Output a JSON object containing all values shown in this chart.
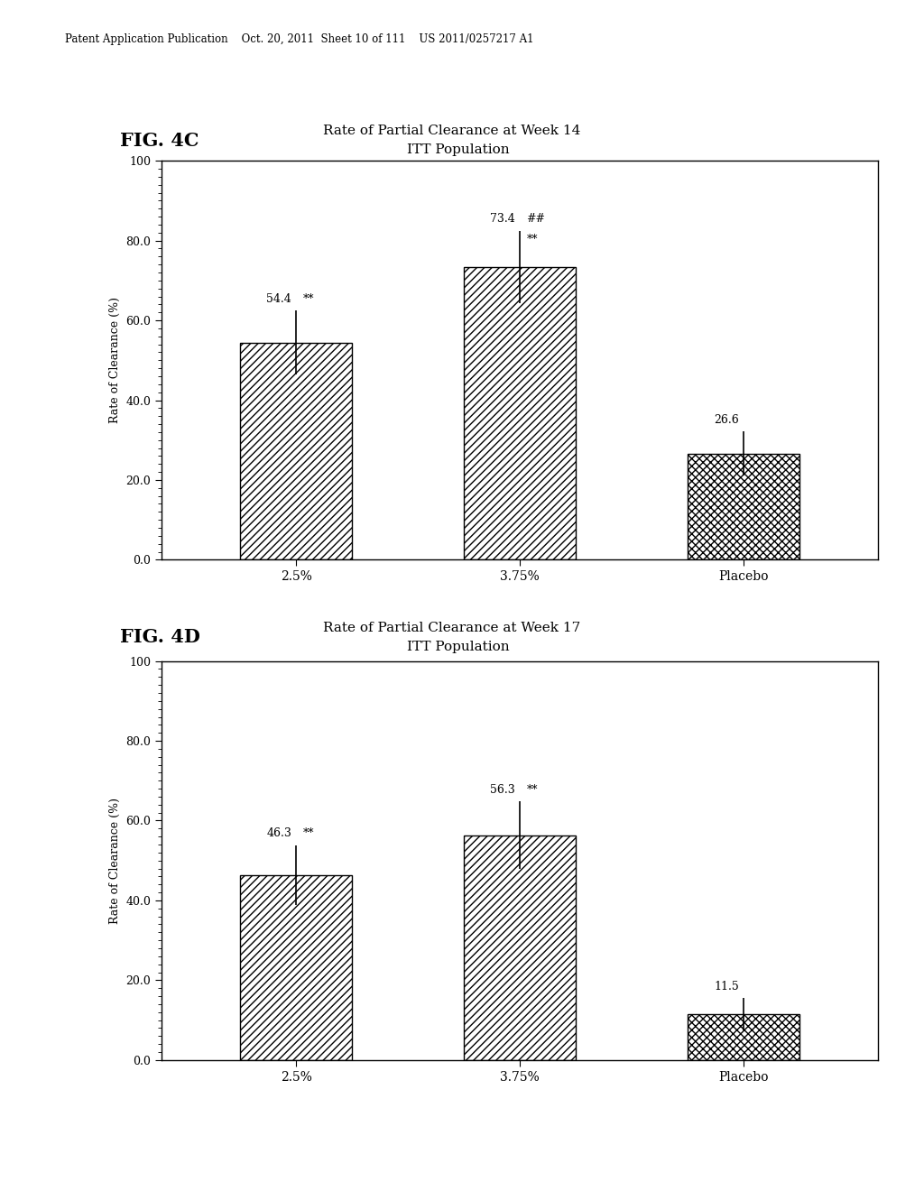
{
  "fig4c": {
    "title_line1": "Rate of Partial Clearance at Week 14",
    "title_line2": "ITT Population",
    "fig_label": "FIG. 4C",
    "categories": [
      "2.5%",
      "3.75%",
      "Placebo"
    ],
    "values": [
      54.4,
      73.4,
      26.6
    ],
    "errors": [
      8.0,
      9.0,
      5.5
    ],
    "bar_labels": [
      "54.4",
      "73.4",
      "26.6"
    ],
    "ann1": [
      "**",
      "##",
      ""
    ],
    "ann2": [
      "",
      "**",
      ""
    ],
    "ylim": [
      0,
      100
    ],
    "yticks": [
      0.0,
      20.0,
      40.0,
      60.0,
      80.0,
      100
    ],
    "ylabel": "Rate of Clearance (%)"
  },
  "fig4d": {
    "title_line1": "Rate of Partial Clearance at Week 17",
    "title_line2": "ITT Population",
    "fig_label": "FIG. 4D",
    "categories": [
      "2.5%",
      "3.75%",
      "Placebo"
    ],
    "values": [
      46.3,
      56.3,
      11.5
    ],
    "errors": [
      7.5,
      8.5,
      4.0
    ],
    "bar_labels": [
      "46.3",
      "56.3",
      "11.5"
    ],
    "ann1": [
      "**",
      "**",
      ""
    ],
    "ann2": [
      "",
      "",
      ""
    ],
    "ylim": [
      0,
      100
    ],
    "yticks": [
      0.0,
      20.0,
      40.0,
      60.0,
      80.0,
      100
    ],
    "ylabel": "Rate of Clearance (%)"
  },
  "header_text": "Patent Application Publication    Oct. 20, 2011  Sheet 10 of 111    US 2011/0257217 A1",
  "background_color": "#ffffff",
  "hatch_diagonal": "////",
  "hatch_cross": "xxxx",
  "bar_edgecolor": "#000000",
  "errorbar_color": "#000000",
  "text_color": "#000000"
}
